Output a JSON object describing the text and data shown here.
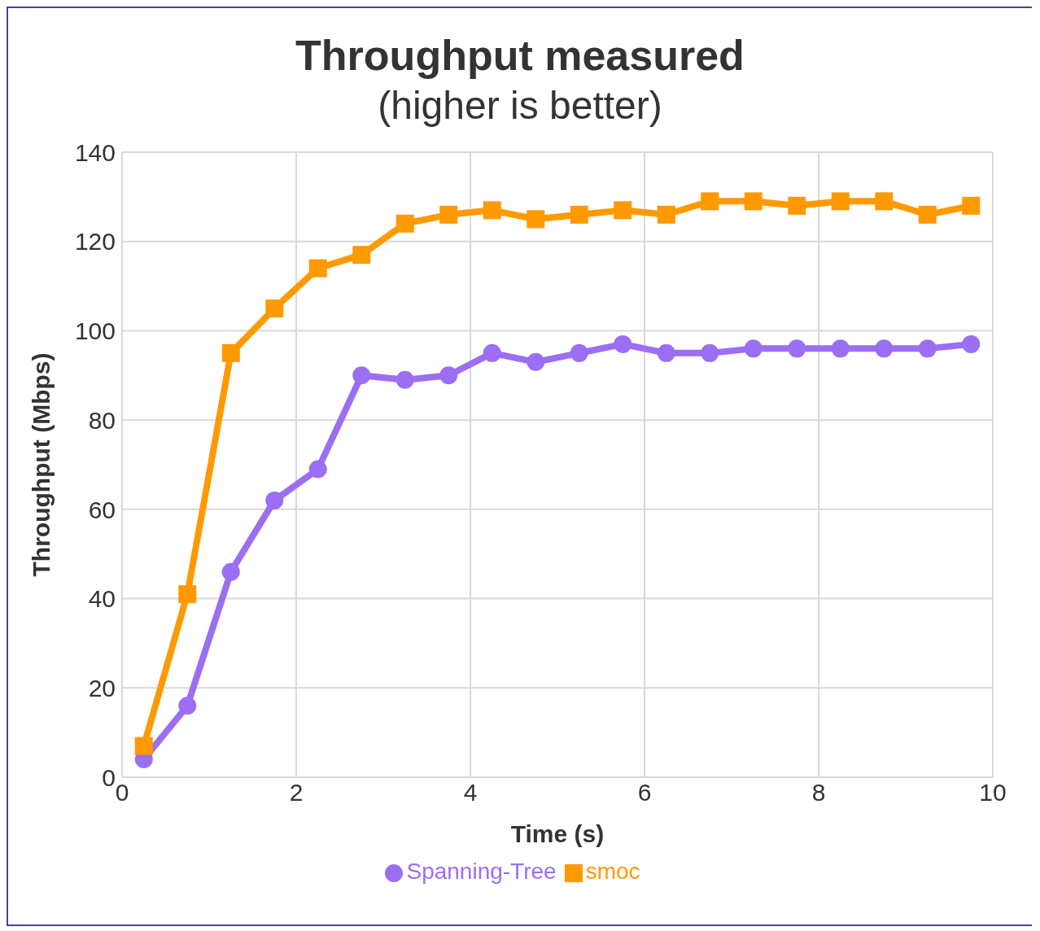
{
  "chart_data": {
    "type": "line",
    "title": "Throughput measured",
    "subtitle": "(higher is better)",
    "xlabel": "Time (s)",
    "ylabel": "Throughput (Mbps)",
    "x": [
      0.25,
      0.75,
      1.25,
      1.75,
      2.25,
      2.75,
      3.25,
      3.75,
      4.25,
      4.75,
      5.25,
      5.75,
      6.25,
      6.75,
      7.25,
      7.75,
      8.25,
      8.75,
      9.25,
      9.75
    ],
    "series": [
      {
        "name": "Spanning-Tree",
        "color": "#9b6ef3",
        "marker": "circle",
        "values": [
          4,
          16,
          46,
          62,
          69,
          90,
          89,
          90,
          95,
          93,
          95,
          97,
          95,
          95,
          96,
          96,
          96,
          96,
          96,
          97
        ]
      },
      {
        "name": "smoc",
        "color": "#ff9900",
        "marker": "square",
        "values": [
          7,
          41,
          95,
          105,
          114,
          117,
          124,
          126,
          127,
          125,
          126,
          127,
          126,
          129,
          129,
          128,
          129,
          129,
          126,
          128
        ]
      }
    ],
    "xlim": [
      0,
      10
    ],
    "xticks": [
      0,
      2,
      4,
      6,
      8,
      10
    ],
    "ylim": [
      0,
      140
    ],
    "yticks": [
      0,
      20,
      40,
      60,
      80,
      100,
      120,
      140
    ],
    "grid": true,
    "legend": "bottom",
    "line_style": "solid"
  }
}
